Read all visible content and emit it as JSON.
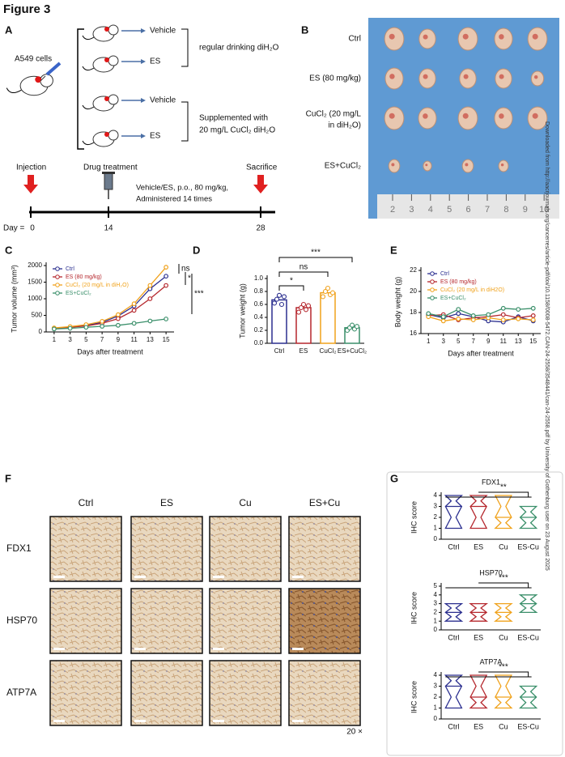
{
  "figure_title": "Figure 3",
  "panel_labels": [
    "A",
    "B",
    "C",
    "D",
    "E",
    "F",
    "G"
  ],
  "panel_a": {
    "cell_line": "A549 cells",
    "groups": [
      "Vehicle",
      "ES",
      "Vehicle",
      "ES"
    ],
    "condition_1": "regular drinking diH₂O",
    "condition_2": [
      "Supplemented with",
      "20 mg/L CuCl₂ diH₂O"
    ],
    "timeline": {
      "events": [
        "Injection",
        "Drug treatment",
        "Sacrifice"
      ],
      "note": [
        "Vehicle/ES, p.o., 80 mg/kg,",
        "Administered 14 times"
      ],
      "day_label": "Day =",
      "days": [
        0,
        14,
        28
      ]
    }
  },
  "panel_b": {
    "rows": [
      "Ctrl",
      "ES (80 mg/kg)",
      [
        "CuCl₂ (20 mg/L",
        "in diH₂O)"
      ],
      "ES+CuCl₂"
    ],
    "ruler": [
      2,
      3,
      4,
      5,
      6,
      7,
      8,
      9,
      10
    ]
  },
  "watermark": "Downloaded from http://aacrjournals.org/cancerres/article-pdf/doi/10.1158/0008-5472.CAN-24-2558/3548441/can-24-2558.pdf by University of Gothenburg user on 23 August 2025",
  "panel_f": {
    "columns": [
      "Ctrl",
      "ES",
      "Cu",
      "ES+Cu"
    ],
    "rows": [
      "FDX1",
      "HSP70",
      "ATP7A"
    ],
    "magnification": "20 ×"
  },
  "chart_data": [
    {
      "type": "line",
      "y_label": "Tumor volume (mm³)",
      "x_label": "Days after treatment",
      "x": [
        1,
        3,
        5,
        7,
        9,
        11,
        13,
        15
      ],
      "xlim": [
        0,
        16
      ],
      "xticks": [
        1,
        3,
        5,
        7,
        9,
        11,
        13,
        15
      ],
      "ylim": [
        0,
        2000
      ],
      "yticks": [
        0,
        500,
        1000,
        1500,
        2000
      ],
      "series": [
        {
          "name": "Ctrl",
          "color": "#2b2f8f",
          "values": [
            110,
            150,
            200,
            290,
            480,
            780,
            1300,
            1680
          ]
        },
        {
          "name": "ES (80 mg/kg)",
          "color": "#b5272d",
          "values": [
            100,
            140,
            180,
            260,
            400,
            650,
            1000,
            1400
          ]
        },
        {
          "name": "CuCl₂ (20 mg/L in diH₂O)",
          "color": "#f0a21c",
          "values": [
            120,
            160,
            220,
            320,
            520,
            850,
            1400,
            1950
          ]
        },
        {
          "name": "ES+CuCl₂",
          "color": "#3a8f6a",
          "values": [
            90,
            110,
            140,
            170,
            200,
            260,
            330,
            390
          ]
        }
      ],
      "annotations": [
        "ns",
        "*",
        "***"
      ]
    },
    {
      "type": "bar",
      "y_label": "Tumor weight (g)",
      "categories": [
        "Ctrl",
        "ES",
        "CuCl₂",
        "ES+CuCl₂"
      ],
      "values": [
        0.67,
        0.55,
        0.78,
        0.24
      ],
      "colors": [
        "#2b2f8f",
        "#b5272d",
        "#f0a21c",
        "#3a8f6a"
      ],
      "points": [
        [
          0.62,
          0.68,
          0.74,
          0.6,
          0.72
        ],
        [
          0.48,
          0.55,
          0.6,
          0.52,
          0.58
        ],
        [
          0.72,
          0.8,
          0.85,
          0.75,
          0.78
        ],
        [
          0.2,
          0.24,
          0.28,
          0.22,
          0.26
        ]
      ],
      "ylim": [
        0,
        1
      ],
      "yticks": [
        {
          "value": 0,
          "label": "0.0"
        },
        0.2,
        0.4,
        0.6,
        0.8,
        {
          "value": 1,
          "label": "1.0"
        }
      ],
      "annotations": [
        "*",
        "ns",
        "***"
      ]
    },
    {
      "type": "line",
      "y_label": "Body weight (g)",
      "x_label": "Days after treatment",
      "x": [
        1,
        3,
        5,
        7,
        9,
        11,
        13,
        15
      ],
      "xlim": [
        0,
        16
      ],
      "xticks": [
        1,
        3,
        5,
        7,
        9,
        11,
        13,
        15
      ],
      "ylim": [
        16,
        22
      ],
      "yticks": [
        16,
        18,
        20,
        22
      ],
      "series": [
        {
          "name": "Ctrl",
          "color": "#2b2f8f",
          "values": [
            17.8,
            17.5,
            17.9,
            17.6,
            17.2,
            17.1,
            17.6,
            17.2
          ]
        },
        {
          "name": "ES (80 mg/kg)",
          "color": "#b5272d",
          "values": [
            17.7,
            17.8,
            17.3,
            17.5,
            17.6,
            17.8,
            17.5,
            17.7
          ]
        },
        {
          "name": "CuCl₂ (20 mg/L in diH2O)",
          "color": "#f0a21c",
          "values": [
            17.6,
            17.2,
            17.4,
            17.3,
            17.5,
            17.3,
            17.4,
            17.3
          ]
        },
        {
          "name": "ES+CuCl₂",
          "color": "#3a8f6a",
          "values": [
            17.9,
            17.6,
            18.3,
            17.7,
            17.8,
            18.4,
            18.3,
            18.4
          ]
        }
      ]
    },
    {
      "type": "violin",
      "title": "FDX1",
      "y_label": "IHC score",
      "categories": [
        "Ctrl",
        "ES",
        "Cu",
        "ES-Cu"
      ],
      "colors": [
        "#2b2f8f",
        "#b5272d",
        "#f0a21c",
        "#3a8f6a"
      ],
      "maxs": [
        4,
        4,
        4,
        3
      ],
      "medians": [
        3,
        3,
        2,
        2
      ],
      "mins": [
        1,
        1,
        1,
        1
      ],
      "ylim": [
        0,
        4
      ],
      "yticks": [
        0,
        1,
        2,
        3,
        4
      ],
      "annotation": "**"
    },
    {
      "type": "violin",
      "title": "HSP70",
      "y_label": "IHC score",
      "categories": [
        "Ctrl",
        "ES",
        "Cu",
        "ES-Cu"
      ],
      "colors": [
        "#2b2f8f",
        "#b5272d",
        "#f0a21c",
        "#3a8f6a"
      ],
      "maxs": [
        3,
        3,
        3,
        4
      ],
      "medians": [
        2,
        2,
        2,
        3
      ],
      "mins": [
        1,
        1,
        1,
        2
      ],
      "ylim": [
        0,
        5
      ],
      "yticks": [
        0,
        1,
        2,
        3,
        4,
        5
      ],
      "annotation": "***"
    },
    {
      "type": "violin",
      "title": "ATP7A",
      "y_label": "IHC score",
      "categories": [
        "Ctrl",
        "ES",
        "Cu",
        "ES-Cu"
      ],
      "colors": [
        "#2b2f8f",
        "#b5272d",
        "#f0a21c",
        "#3a8f6a"
      ],
      "maxs": [
        4,
        4,
        4,
        3
      ],
      "medians": [
        3,
        2,
        2,
        2
      ],
      "mins": [
        1,
        1,
        1,
        1
      ],
      "ylim": [
        0,
        4
      ],
      "yticks": [
        0,
        1,
        2,
        3,
        4
      ],
      "annotation": "***"
    }
  ]
}
